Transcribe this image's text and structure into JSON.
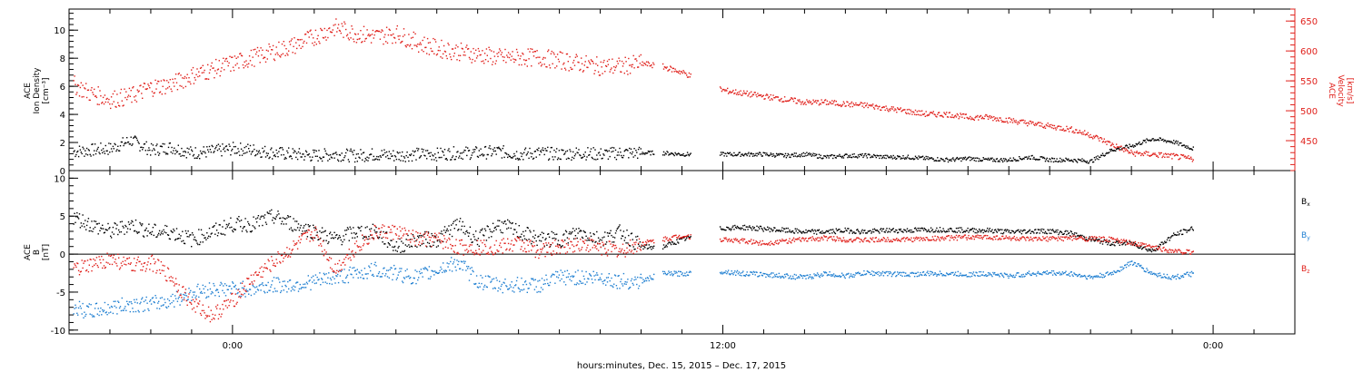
{
  "colors": {
    "black": "#000000",
    "red": "#e0201b",
    "blue": "#1f7fd1"
  },
  "x_axis": {
    "ticks": [
      {
        "label": "0:00",
        "hours": 0
      },
      {
        "label": "12:00",
        "hours": 12
      },
      {
        "label": "0:00",
        "hours": 24
      }
    ],
    "range_hours": [
      -4,
      26
    ],
    "caption": "hours:minutes, Dec. 15, 2015 – Dec. 17, 2015"
  },
  "chart_data": [
    {
      "type": "scatter",
      "panel": "plasma",
      "left_axis": {
        "label_lines": [
          "ACE",
          "Ion Density",
          "[cm⁻³]"
        ],
        "ylim": [
          0,
          11.5
        ],
        "ticks": [
          "0",
          "2",
          "4",
          "6",
          "8",
          "10"
        ],
        "tick_values": [
          0,
          2,
          4,
          6,
          8,
          10
        ]
      },
      "right_axis": {
        "label_lines": [
          "ACE",
          "Velocity",
          "[km/s]"
        ],
        "ylim": [
          400,
          670
        ],
        "ticks": [
          "450",
          "500",
          "550",
          "600",
          "650"
        ],
        "tick_values": [
          450,
          500,
          550,
          600,
          650
        ]
      },
      "series": [
        {
          "color": "black",
          "axis": "left",
          "x": [
            -3.9,
            -3,
            -2.5,
            -2,
            -1.5,
            -1,
            -0.5,
            0,
            0.5,
            1,
            1.5,
            2,
            2.5,
            3,
            3.5,
            4,
            4.5,
            5,
            5.5,
            6,
            6.5,
            7,
            7.5,
            8,
            8.5,
            9,
            9.5,
            10,
            10.5,
            11,
            12,
            12.5,
            13,
            13.5,
            14,
            14.5,
            15,
            15.5,
            16,
            16.5,
            17,
            17.5,
            18,
            18.5,
            19,
            19.5,
            20,
            20.5,
            21,
            21.5,
            22,
            22.5,
            23,
            23.5
          ],
          "y": [
            1.4,
            1.6,
            2.2,
            1.5,
            1.7,
            1.3,
            1.4,
            1.6,
            1.5,
            1.3,
            1.2,
            1.1,
            1.2,
            1.1,
            1.2,
            1.1,
            1.2,
            1.2,
            1.3,
            1.3,
            1.4,
            1.2,
            1.3,
            1.2,
            1.3,
            1.2,
            1.3,
            1.3,
            1.3,
            1.2,
            1.2,
            1.2,
            1.2,
            1.1,
            1.2,
            1.0,
            1.1,
            1.1,
            1.0,
            1.0,
            0.9,
            0.8,
            0.9,
            0.8,
            0.8,
            1.0,
            0.8,
            0.8,
            0.7,
            1.5,
            1.8,
            2.3,
            2.1,
            1.6
          ],
          "gaps_hours": [
            [
              10.3,
              10.5
            ],
            [
              11.2,
              11.9
            ]
          ]
        },
        {
          "color": "red",
          "axis": "right",
          "x": [
            -3.9,
            -3.5,
            -3,
            -2.5,
            -2,
            -1.5,
            -1,
            -0.5,
            0,
            0.5,
            1,
            1.5,
            2,
            2.5,
            3,
            3.5,
            4,
            4.5,
            5,
            5.5,
            6,
            6.5,
            7,
            7.5,
            8,
            8.5,
            9,
            9.5,
            10,
            10.5,
            11,
            12,
            12.5,
            13,
            13.5,
            14,
            14.5,
            15,
            15.5,
            16,
            16.5,
            17,
            17.5,
            18,
            18.5,
            19,
            19.5,
            20,
            20.5,
            21,
            21.5,
            22,
            22.5,
            23,
            23.5
          ],
          "y": [
            545,
            530,
            520,
            525,
            540,
            545,
            560,
            570,
            580,
            590,
            600,
            610,
            625,
            640,
            630,
            625,
            630,
            615,
            605,
            600,
            595,
            590,
            590,
            590,
            585,
            580,
            575,
            575,
            580,
            575,
            565,
            535,
            530,
            525,
            520,
            515,
            515,
            512,
            510,
            505,
            500,
            495,
            495,
            490,
            490,
            485,
            480,
            475,
            470,
            460,
            445,
            430,
            428,
            425,
            420
          ],
          "gaps_hours": [
            [
              10.3,
              10.5
            ],
            [
              11.2,
              11.9
            ]
          ]
        }
      ]
    },
    {
      "type": "scatter",
      "panel": "magnetic-field",
      "left_axis": {
        "label_lines": [
          "ACE",
          "B",
          "[nT]"
        ],
        "ylim": [
          -10.5,
          11
        ],
        "ticks": [
          "-10",
          "-5",
          "0",
          "5",
          "10"
        ],
        "tick_values": [
          -10,
          -5,
          0,
          5,
          10
        ]
      },
      "zero_line": true,
      "legend": [
        {
          "text": "B",
          "subscript": "x",
          "color": "black"
        },
        {
          "text": "B",
          "subscript": "y",
          "color": "blue"
        },
        {
          "text": "B",
          "subscript": "z",
          "color": "red"
        }
      ],
      "series": [
        {
          "color": "black",
          "x": [
            -3.9,
            -3.5,
            -3,
            -2.5,
            -2,
            -1.5,
            -1,
            -0.5,
            0,
            0.5,
            1,
            1.5,
            2,
            2.5,
            3,
            3.5,
            4,
            4.5,
            5,
            5.5,
            6,
            6.5,
            7,
            7.5,
            8,
            8.5,
            9,
            9.5,
            10,
            10.5,
            11,
            12,
            12.5,
            13,
            13.5,
            14,
            14.5,
            15,
            15.5,
            16,
            16.5,
            17,
            17.5,
            18,
            18.5,
            19,
            19.5,
            20,
            20.5,
            21,
            21.5,
            22,
            22.5,
            23,
            23.5
          ],
          "y": [
            5,
            4,
            3,
            4,
            3,
            3,
            2,
            3,
            4,
            4,
            5,
            4,
            3,
            2,
            3,
            3,
            1,
            2,
            2,
            4,
            2,
            4,
            3,
            2,
            2,
            3,
            2,
            3,
            1,
            1,
            2,
            3.5,
            3.6,
            3.4,
            3.2,
            3.0,
            3.0,
            3.2,
            3.0,
            3.2,
            3.2,
            3.3,
            3.3,
            3.2,
            3.2,
            3.0,
            3.1,
            3.1,
            2.8,
            2.0,
            1.5,
            1.5,
            0.5,
            2.5,
            3.5
          ],
          "gaps_hours": [
            [
              10.3,
              10.5
            ],
            [
              11.2,
              11.9
            ]
          ]
        },
        {
          "color": "blue",
          "x": [
            -3.9,
            -3.5,
            -3,
            -2.5,
            -2,
            -1.5,
            -1,
            -0.5,
            0,
            0.5,
            1,
            1.5,
            2,
            2.5,
            3,
            3.5,
            4,
            4.5,
            5,
            5.5,
            6,
            6.5,
            7,
            7.5,
            8,
            8.5,
            9,
            9.5,
            10,
            10.5,
            11,
            12,
            12.5,
            13,
            13.5,
            14,
            14.5,
            15,
            15.5,
            16,
            16.5,
            17,
            17.5,
            18,
            18.5,
            19,
            19.5,
            20,
            20.5,
            21,
            21.5,
            22,
            22.5,
            23,
            23.5
          ],
          "y": [
            -7,
            -7.5,
            -7,
            -6.5,
            -6.5,
            -6,
            -5,
            -4.5,
            -4.5,
            -4.5,
            -4,
            -4,
            -3.5,
            -3,
            -2.5,
            -2,
            -2.5,
            -3,
            -2,
            -1,
            -3.5,
            -4,
            -4,
            -4,
            -3,
            -3,
            -3,
            -3.5,
            -3.5,
            -2.5,
            -2.5,
            -2.2,
            -2.5,
            -2.6,
            -2.8,
            -3.0,
            -2.5,
            -2.8,
            -2.4,
            -2.5,
            -2.6,
            -2.5,
            -2.5,
            -2.6,
            -2.5,
            -2.8,
            -2.5,
            -2.4,
            -2.5,
            -3.0,
            -2.5,
            -1.0,
            -2.5,
            -3.0,
            -2.5
          ],
          "gaps_hours": [
            [
              10.3,
              10.5
            ],
            [
              11.2,
              11.9
            ]
          ]
        },
        {
          "color": "red",
          "x": [
            -3.9,
            -3.5,
            -3,
            -2.5,
            -2,
            -1.5,
            -1,
            -0.5,
            0,
            0.5,
            1,
            1.5,
            2,
            2.5,
            3,
            3.5,
            4,
            4.5,
            5,
            5.5,
            6,
            6.5,
            7,
            7.5,
            8,
            8.5,
            9,
            9.5,
            10,
            10.5,
            11,
            12,
            12.5,
            13,
            13.5,
            14,
            14.5,
            15,
            15.5,
            16,
            16.5,
            17,
            17.5,
            18,
            18.5,
            19,
            19.5,
            20,
            20.5,
            21,
            21.5,
            22,
            22.5,
            23,
            23.5
          ],
          "y": [
            -2,
            -1.5,
            -0.5,
            -1.5,
            -1,
            -3,
            -6.5,
            -8,
            -6,
            -3,
            -1,
            1,
            3,
            -2,
            1,
            3,
            3,
            2,
            2,
            1,
            1,
            1,
            1.5,
            0.5,
            1,
            1.5,
            1,
            0.5,
            1.5,
            2,
            2.5,
            2.0,
            1.8,
            1.5,
            1.8,
            2.0,
            2.2,
            2.0,
            1.9,
            2.0,
            2.0,
            2.1,
            2.2,
            2.3,
            2.3,
            2.2,
            2.0,
            2.1,
            2.2,
            2.1,
            2.0,
            1.5,
            1.0,
            0.5,
            0.3
          ],
          "gaps_hours": [
            [
              10.3,
              10.5
            ],
            [
              11.2,
              11.9
            ]
          ]
        }
      ]
    }
  ]
}
